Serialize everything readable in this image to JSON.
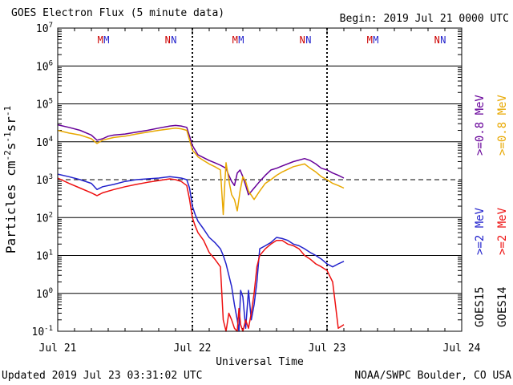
{
  "header": {
    "title": "GOES Electron Flux (5 minute data)",
    "begin": "Begin: 2019 Jul 21 0000 UTC"
  },
  "footer": {
    "updated": "Updated 2019 Jul 23 03:31:02 UTC",
    "credit": "NOAA/SWPC Boulder, CO USA"
  },
  "colors": {
    "goes15_2mev": "#2222cc",
    "goes14_2mev": "#ee1111",
    "goes15_08mev": "#660099",
    "goes14_08mev": "#e8a800",
    "marker_m": "#cc0000",
    "marker_n": "#cc0000",
    "marker_m2": "#2222cc",
    "marker_n2": "#2222cc"
  },
  "chart_data": {
    "type": "line",
    "title": "GOES Electron Flux (5 minute data)",
    "xlabel": "Universal Time",
    "ylabel": "Particles cm-2s-1sr-1",
    "ylabel_parts": {
      "base": "Particles cm",
      "e1": "-2",
      "s": "s",
      "e2": "-1",
      "sr": "sr",
      "e3": "-1"
    },
    "yscale": "log",
    "ylim": [
      0.1,
      10000000
    ],
    "y_ticks": [
      {
        "value": 0.1,
        "base": "10",
        "exp": "-1"
      },
      {
        "value": 1,
        "base": "10",
        "exp": "0"
      },
      {
        "value": 10,
        "base": "10",
        "exp": "1"
      },
      {
        "value": 100,
        "base": "10",
        "exp": "2"
      },
      {
        "value": 1000,
        "base": "10",
        "exp": "3"
      },
      {
        "value": 10000,
        "base": "10",
        "exp": "4"
      },
      {
        "value": 100000,
        "base": "10",
        "exp": "5"
      },
      {
        "value": 1000000,
        "base": "10",
        "exp": "6"
      },
      {
        "value": 10000000,
        "base": "10",
        "exp": "7"
      }
    ],
    "xlim_hours": [
      0,
      72
    ],
    "x_ticks": [
      {
        "hour": 0,
        "label": "Jul 21"
      },
      {
        "hour": 24,
        "label": "Jul 22"
      },
      {
        "hour": 48,
        "label": "Jul 23"
      },
      {
        "hour": 72,
        "label": "Jul 24"
      }
    ],
    "alert_threshold": 1000,
    "day_boundaries_hours": [
      24,
      48
    ],
    "magnetopause_markers": [
      {
        "hour": 7.6,
        "text": "M",
        "row": "goes14"
      },
      {
        "hour": 8.7,
        "text": "M",
        "row": "goes15"
      },
      {
        "hour": 19.6,
        "text": "N",
        "row": "goes14"
      },
      {
        "hour": 20.7,
        "text": "N",
        "row": "goes15"
      },
      {
        "hour": 31.6,
        "text": "M",
        "row": "goes14"
      },
      {
        "hour": 32.7,
        "text": "M",
        "row": "goes15"
      },
      {
        "hour": 43.6,
        "text": "N",
        "row": "goes14"
      },
      {
        "hour": 44.7,
        "text": "N",
        "row": "goes15"
      },
      {
        "hour": 55.6,
        "text": "M",
        "row": "goes14"
      },
      {
        "hour": 56.7,
        "text": "M",
        "row": "goes15"
      },
      {
        "hour": 67.6,
        "text": "N",
        "row": "goes14"
      },
      {
        "hour": 68.7,
        "text": "N",
        "row": "goes15"
      }
    ],
    "legend": {
      "placement": "right",
      "satellites": [
        "GOES15",
        "GOES14"
      ],
      "entries": [
        {
          "label": ">=0.8 MeV",
          "series": "GOES15 >=0.8 MeV",
          "color": "#660099"
        },
        {
          "label": ">=0.8 MeV",
          "series": "GOES14 >=0.8 MeV",
          "color": "#e8a800"
        },
        {
          "label": ">=2 MeV",
          "series": "GOES15 >=2 MeV",
          "color": "#2222cc"
        },
        {
          "label": ">=2 MeV",
          "series": "GOES14 >=2 MeV",
          "color": "#ee1111"
        }
      ]
    },
    "series": [
      {
        "name": "GOES15 >=0.8 MeV",
        "color": "#660099",
        "x": [
          0,
          2,
          4,
          6,
          7,
          8,
          9,
          10,
          12,
          14,
          16,
          18,
          20,
          21,
          22,
          23,
          23.5,
          24,
          24.5,
          25,
          26,
          27,
          28,
          29,
          30,
          30.5,
          31,
          31.5,
          32,
          32.5,
          33,
          33.5,
          34,
          35,
          36,
          37,
          38,
          39,
          40,
          42,
          44,
          45,
          46,
          47,
          48,
          49,
          50,
          51
        ],
        "y": [
          28000,
          24000,
          20000,
          15000,
          11000,
          12000,
          14000,
          15000,
          16000,
          18000,
          20000,
          23000,
          26000,
          27000,
          26000,
          24000,
          14000,
          8000,
          6000,
          4500,
          3800,
          3200,
          2800,
          2400,
          2000,
          1300,
          900,
          700,
          1500,
          1800,
          1200,
          700,
          400,
          600,
          900,
          1300,
          1800,
          2000,
          2300,
          3000,
          3600,
          3200,
          2600,
          2000,
          1800,
          1500,
          1300,
          1100
        ]
      },
      {
        "name": "GOES14 >=0.8 MeV",
        "color": "#e8a800",
        "x": [
          0,
          2,
          4,
          6,
          7,
          8,
          9,
          10,
          12,
          14,
          16,
          18,
          20,
          21,
          22,
          23,
          23.5,
          24,
          24.5,
          25,
          26,
          27,
          28,
          29,
          29.5,
          29.8,
          30,
          30.3,
          30.6,
          31,
          31.5,
          32,
          32.5,
          33,
          33.5,
          34,
          35,
          36,
          37,
          38,
          39,
          40,
          42,
          44,
          45,
          46,
          47,
          48,
          49,
          50,
          51
        ],
        "y": [
          20000,
          17000,
          15000,
          12000,
          9000,
          11000,
          12000,
          13000,
          14000,
          16000,
          18000,
          20000,
          22000,
          23000,
          22000,
          20000,
          11000,
          6000,
          5000,
          4000,
          3200,
          2600,
          2200,
          1800,
          120,
          900,
          2800,
          1500,
          800,
          400,
          300,
          150,
          500,
          1200,
          900,
          500,
          300,
          500,
          800,
          1000,
          1300,
          1600,
          2200,
          2600,
          2000,
          1600,
          1200,
          1000,
          800,
          700,
          600
        ]
      },
      {
        "name": "GOES15 >=2 MeV",
        "color": "#2222cc",
        "x": [
          0,
          2,
          4,
          6,
          7,
          8,
          10,
          12,
          14,
          16,
          18,
          19,
          20,
          21,
          22,
          23,
          23.5,
          24,
          24.5,
          25,
          26,
          27,
          28,
          29,
          29.5,
          30,
          30.5,
          31,
          31.5,
          32,
          32.3,
          32.6,
          33,
          33.5,
          34,
          34.5,
          35,
          35.5,
          36,
          37,
          38,
          39,
          40,
          41,
          42,
          43,
          44,
          45,
          46,
          47,
          48,
          49,
          50,
          51
        ],
        "y": [
          1400,
          1200,
          1000,
          800,
          550,
          650,
          750,
          900,
          1000,
          1050,
          1100,
          1150,
          1200,
          1150,
          1100,
          1000,
          600,
          200,
          120,
          80,
          50,
          30,
          22,
          15,
          10,
          6,
          3,
          1.5,
          0.5,
          0.2,
          0.1,
          1.2,
          0.8,
          0.12,
          1.2,
          0.2,
          0.5,
          2,
          15,
          18,
          22,
          30,
          28,
          25,
          20,
          18,
          15,
          12,
          10,
          8,
          6,
          5,
          6,
          7
        ]
      },
      {
        "name": "GOES14 >=2 MeV",
        "color": "#ee1111",
        "x": [
          0,
          2,
          4,
          6,
          7,
          8,
          10,
          12,
          14,
          16,
          18,
          19,
          20,
          21,
          22,
          23,
          23.5,
          24,
          24.5,
          25,
          26,
          27,
          28,
          29,
          29.5,
          30,
          30.5,
          31,
          31.5,
          32,
          32.3,
          32.6,
          33,
          33.5,
          34,
          34.5,
          35,
          35.5,
          36,
          37,
          38,
          39,
          40,
          41,
          42,
          43,
          44,
          45,
          46,
          47,
          48,
          49,
          49.5,
          50,
          51
        ],
        "y": [
          1100,
          800,
          600,
          450,
          380,
          450,
          550,
          650,
          750,
          850,
          950,
          1000,
          1050,
          1000,
          900,
          700,
          300,
          100,
          60,
          40,
          25,
          12,
          8,
          5,
          0.2,
          0.1,
          0.3,
          0.2,
          0.12,
          0.1,
          0.4,
          0.15,
          0.1,
          0.2,
          0.12,
          0.3,
          1,
          5,
          10,
          15,
          20,
          25,
          25,
          20,
          18,
          15,
          10,
          8,
          6,
          5,
          4,
          2,
          0.5,
          0.12,
          0.15
        ]
      }
    ]
  }
}
